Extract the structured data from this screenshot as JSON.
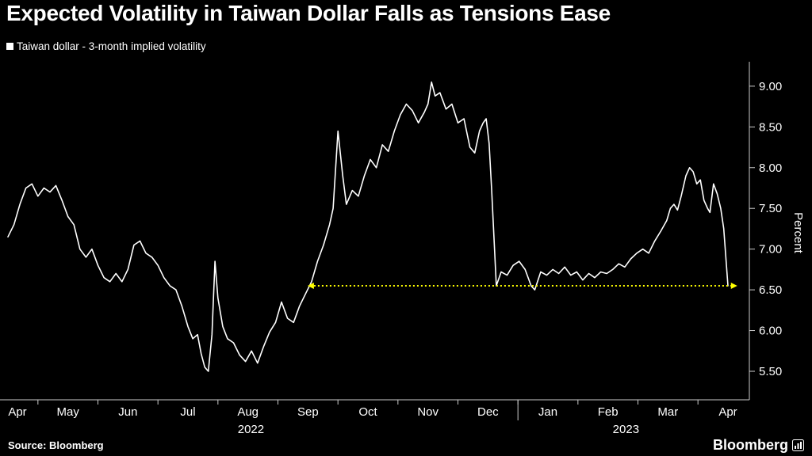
{
  "title": "Expected Volatility in Taiwan Dollar Falls as Tensions Ease",
  "legend": {
    "label": "Taiwan dollar - 3-month implied volatility",
    "marker_color": "#ffffff"
  },
  "source": "Source: Bloomberg",
  "logo": "Bloomberg",
  "colors": {
    "background": "#000000",
    "series": "#ffffff",
    "axis": "#cccccc",
    "text": "#ffffff",
    "reference": "#ffff00"
  },
  "chart_data": {
    "type": "line",
    "title": "Expected Volatility in Taiwan Dollar Falls as Tensions Ease",
    "x_axis": {
      "range": [
        0,
        12
      ],
      "month_labels": [
        "Apr",
        "May",
        "Jun",
        "Jul",
        "Aug",
        "Sep",
        "Oct",
        "Nov",
        "Dec",
        "Jan",
        "Feb",
        "Mar",
        "Apr"
      ],
      "year_labels": [
        {
          "text": "2022",
          "month": 4.05
        },
        {
          "text": "2023",
          "month": 10.3
        }
      ],
      "year_divider_months": [
        8.5
      ]
    },
    "y_axis": {
      "label": "Percent",
      "side": "right",
      "range": [
        5.15,
        9.3
      ],
      "tick_values": [
        5.5,
        6.0,
        6.5,
        7.0,
        7.5,
        8.0,
        8.5,
        9.0
      ],
      "tick_labels": [
        "5.50",
        "6.00",
        "6.50",
        "7.00",
        "7.50",
        "8.00",
        "8.50",
        "9.00"
      ]
    },
    "reference_line": {
      "value": 6.55,
      "x_start": 5.1,
      "x_end": 12.05,
      "color": "#ffff00",
      "style": "dotted",
      "arrowheads": "both"
    },
    "series": [
      {
        "name": "Taiwan dollar - 3-month implied volatility",
        "color": "#ffffff",
        "points": [
          [
            0,
            7.15
          ],
          [
            0.1,
            7.3
          ],
          [
            0.2,
            7.55
          ],
          [
            0.3,
            7.75
          ],
          [
            0.4,
            7.8
          ],
          [
            0.5,
            7.65
          ],
          [
            0.6,
            7.75
          ],
          [
            0.7,
            7.7
          ],
          [
            0.8,
            7.78
          ],
          [
            0.9,
            7.6
          ],
          [
            1,
            7.4
          ],
          [
            1.1,
            7.3
          ],
          [
            1.2,
            7.0
          ],
          [
            1.3,
            6.9
          ],
          [
            1.4,
            7.0
          ],
          [
            1.5,
            6.8
          ],
          [
            1.6,
            6.65
          ],
          [
            1.7,
            6.6
          ],
          [
            1.8,
            6.7
          ],
          [
            1.9,
            6.6
          ],
          [
            2,
            6.75
          ],
          [
            2.1,
            7.05
          ],
          [
            2.2,
            7.1
          ],
          [
            2.3,
            6.95
          ],
          [
            2.4,
            6.9
          ],
          [
            2.5,
            6.8
          ],
          [
            2.6,
            6.65
          ],
          [
            2.7,
            6.55
          ],
          [
            2.8,
            6.5
          ],
          [
            2.9,
            6.3
          ],
          [
            3,
            6.05
          ],
          [
            3.08,
            5.9
          ],
          [
            3.16,
            5.95
          ],
          [
            3.22,
            5.72
          ],
          [
            3.28,
            5.55
          ],
          [
            3.34,
            5.5
          ],
          [
            3.4,
            5.95
          ],
          [
            3.45,
            6.85
          ],
          [
            3.5,
            6.4
          ],
          [
            3.58,
            6.05
          ],
          [
            3.66,
            5.9
          ],
          [
            3.76,
            5.85
          ],
          [
            3.86,
            5.7
          ],
          [
            3.96,
            5.62
          ],
          [
            4.06,
            5.75
          ],
          [
            4.16,
            5.6
          ],
          [
            4.26,
            5.8
          ],
          [
            4.36,
            5.98
          ],
          [
            4.46,
            6.1
          ],
          [
            4.56,
            6.35
          ],
          [
            4.66,
            6.15
          ],
          [
            4.76,
            6.1
          ],
          [
            4.86,
            6.3
          ],
          [
            4.96,
            6.45
          ],
          [
            5.06,
            6.6
          ],
          [
            5.16,
            6.85
          ],
          [
            5.26,
            7.05
          ],
          [
            5.36,
            7.3
          ],
          [
            5.42,
            7.5
          ],
          [
            5.5,
            8.45
          ],
          [
            5.58,
            7.9
          ],
          [
            5.64,
            7.55
          ],
          [
            5.74,
            7.72
          ],
          [
            5.84,
            7.65
          ],
          [
            5.94,
            7.9
          ],
          [
            6.04,
            8.1
          ],
          [
            6.14,
            8.0
          ],
          [
            6.24,
            8.28
          ],
          [
            6.34,
            8.2
          ],
          [
            6.44,
            8.45
          ],
          [
            6.54,
            8.65
          ],
          [
            6.64,
            8.78
          ],
          [
            6.74,
            8.7
          ],
          [
            6.84,
            8.55
          ],
          [
            6.94,
            8.68
          ],
          [
            7.0,
            8.78
          ],
          [
            7.06,
            9.05
          ],
          [
            7.12,
            8.88
          ],
          [
            7.2,
            8.92
          ],
          [
            7.3,
            8.72
          ],
          [
            7.4,
            8.78
          ],
          [
            7.5,
            8.55
          ],
          [
            7.6,
            8.6
          ],
          [
            7.7,
            8.25
          ],
          [
            7.78,
            8.18
          ],
          [
            7.86,
            8.45
          ],
          [
            7.92,
            8.55
          ],
          [
            7.97,
            8.6
          ],
          [
            8.02,
            8.3
          ],
          [
            8.06,
            7.75
          ],
          [
            8.1,
            7.15
          ],
          [
            8.14,
            6.55
          ],
          [
            8.22,
            6.72
          ],
          [
            8.32,
            6.68
          ],
          [
            8.42,
            6.8
          ],
          [
            8.52,
            6.85
          ],
          [
            8.62,
            6.75
          ],
          [
            8.72,
            6.55
          ],
          [
            8.78,
            6.5
          ],
          [
            8.88,
            6.72
          ],
          [
            8.98,
            6.68
          ],
          [
            9.08,
            6.75
          ],
          [
            9.18,
            6.7
          ],
          [
            9.28,
            6.78
          ],
          [
            9.38,
            6.68
          ],
          [
            9.48,
            6.72
          ],
          [
            9.58,
            6.62
          ],
          [
            9.68,
            6.7
          ],
          [
            9.78,
            6.65
          ],
          [
            9.88,
            6.72
          ],
          [
            9.98,
            6.7
          ],
          [
            10.08,
            6.75
          ],
          [
            10.18,
            6.82
          ],
          [
            10.28,
            6.78
          ],
          [
            10.38,
            6.88
          ],
          [
            10.48,
            6.95
          ],
          [
            10.58,
            7.0
          ],
          [
            10.68,
            6.95
          ],
          [
            10.78,
            7.1
          ],
          [
            10.88,
            7.22
          ],
          [
            10.98,
            7.35
          ],
          [
            11.04,
            7.5
          ],
          [
            11.1,
            7.55
          ],
          [
            11.16,
            7.48
          ],
          [
            11.22,
            7.65
          ],
          [
            11.3,
            7.9
          ],
          [
            11.36,
            8.0
          ],
          [
            11.42,
            7.95
          ],
          [
            11.48,
            7.8
          ],
          [
            11.54,
            7.85
          ],
          [
            11.6,
            7.6
          ],
          [
            11.66,
            7.5
          ],
          [
            11.7,
            7.45
          ],
          [
            11.76,
            7.8
          ],
          [
            11.82,
            7.68
          ],
          [
            11.88,
            7.5
          ],
          [
            11.93,
            7.25
          ],
          [
            12,
            6.55
          ]
        ]
      }
    ]
  }
}
